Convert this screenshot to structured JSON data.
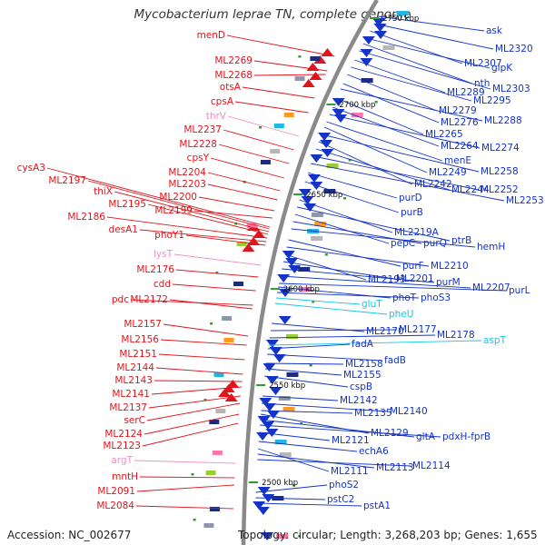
{
  "title": "Mycobacterium leprae TN, complete genome",
  "footer": {
    "accession": "Accession: NC_002677",
    "summary": "Topology: circular; Length: 3,268,203 bp; Genes: 1,655"
  },
  "colors": {
    "forward_strand": "#e0151b",
    "reverse_strand": "#1433c8",
    "rna_left": "#ee90c0",
    "rna_right": "#16c6e6",
    "backbone": "#8a8a8a"
  },
  "scale_ticks": [
    {
      "label": "2750 kbp"
    },
    {
      "label": "2700 kbp"
    },
    {
      "label": "2650 kbp"
    },
    {
      "label": "2600 kbp"
    },
    {
      "label": "2550 kbp"
    },
    {
      "label": "2500 kbp"
    }
  ],
  "left_labels": [
    {
      "text": "menD",
      "type": "forward"
    },
    {
      "text": "ML2269",
      "type": "forward"
    },
    {
      "text": "ML2268",
      "type": "forward"
    },
    {
      "text": "otsA",
      "type": "forward"
    },
    {
      "text": "cpsA",
      "type": "forward"
    },
    {
      "text": "thrV",
      "type": "rna"
    },
    {
      "text": "ML2237",
      "type": "forward"
    },
    {
      "text": "ML2228",
      "type": "forward"
    },
    {
      "text": "cpsY",
      "type": "forward"
    },
    {
      "text": "cysA3",
      "type": "forward"
    },
    {
      "text": "ML2204",
      "type": "forward"
    },
    {
      "text": "ML2197",
      "type": "forward"
    },
    {
      "text": "ML2203",
      "type": "forward"
    },
    {
      "text": "thiX",
      "type": "forward"
    },
    {
      "text": "ML2200",
      "type": "forward"
    },
    {
      "text": "ML2195",
      "type": "forward"
    },
    {
      "text": "ML2199",
      "type": "forward"
    },
    {
      "text": "ML2186",
      "type": "forward"
    },
    {
      "text": "desA1",
      "type": "forward"
    },
    {
      "text": "phoY1",
      "type": "forward"
    },
    {
      "text": "lysT",
      "type": "rna"
    },
    {
      "text": "ML2176",
      "type": "forward"
    },
    {
      "text": "cdd",
      "type": "forward"
    },
    {
      "text": "pdc",
      "type": "forward"
    },
    {
      "text": "ML2172",
      "type": "forward"
    },
    {
      "text": "ML2157",
      "type": "forward"
    },
    {
      "text": "ML2156",
      "type": "forward"
    },
    {
      "text": "ML2151",
      "type": "forward"
    },
    {
      "text": "ML2144",
      "type": "forward"
    },
    {
      "text": "ML2143",
      "type": "forward"
    },
    {
      "text": "ML2141",
      "type": "forward"
    },
    {
      "text": "ML2137",
      "type": "forward"
    },
    {
      "text": "serC",
      "type": "forward"
    },
    {
      "text": "ML2124",
      "type": "forward"
    },
    {
      "text": "ML2123",
      "type": "forward"
    },
    {
      "text": "argT",
      "type": "rna"
    },
    {
      "text": "mntH",
      "type": "forward"
    },
    {
      "text": "ML2091",
      "type": "forward"
    },
    {
      "text": "ML2084",
      "type": "forward"
    }
  ],
  "right_labels": [
    {
      "text": "ask",
      "type": "reverse"
    },
    {
      "text": "ML2320",
      "type": "reverse"
    },
    {
      "text": "ML2307",
      "type": "reverse"
    },
    {
      "text": "glpK",
      "type": "reverse"
    },
    {
      "text": "nth",
      "type": "reverse"
    },
    {
      "text": "ML2303",
      "type": "reverse"
    },
    {
      "text": "ML2289",
      "type": "reverse"
    },
    {
      "text": "ML2295",
      "type": "reverse"
    },
    {
      "text": "ML2279",
      "type": "reverse"
    },
    {
      "text": "ML2276",
      "type": "reverse"
    },
    {
      "text": "ML2288",
      "type": "reverse"
    },
    {
      "text": "ML2265",
      "type": "reverse"
    },
    {
      "text": "ML2264",
      "type": "reverse"
    },
    {
      "text": "ML2274",
      "type": "reverse"
    },
    {
      "text": "menE",
      "type": "reverse"
    },
    {
      "text": "ML2249",
      "type": "reverse"
    },
    {
      "text": "ML2258",
      "type": "reverse"
    },
    {
      "text": "ML2242",
      "type": "reverse"
    },
    {
      "text": "ML2244",
      "type": "reverse"
    },
    {
      "text": "ML2252",
      "type": "reverse"
    },
    {
      "text": "ML2253",
      "type": "reverse"
    },
    {
      "text": "purD",
      "type": "reverse"
    },
    {
      "text": "purB",
      "type": "reverse"
    },
    {
      "text": "ML2219A",
      "type": "reverse"
    },
    {
      "text": "ptrB",
      "type": "reverse"
    },
    {
      "text": "pepC",
      "type": "reverse"
    },
    {
      "text": "purQ",
      "type": "reverse"
    },
    {
      "text": "hemH",
      "type": "reverse"
    },
    {
      "text": "purF",
      "type": "reverse"
    },
    {
      "text": "ML2210",
      "type": "reverse"
    },
    {
      "text": "ML2193",
      "type": "reverse"
    },
    {
      "text": "ML2201",
      "type": "reverse"
    },
    {
      "text": "purM",
      "type": "reverse"
    },
    {
      "text": "ML2207",
      "type": "reverse"
    },
    {
      "text": "purL",
      "type": "reverse"
    },
    {
      "text": "phoT",
      "type": "reverse"
    },
    {
      "text": "phoS3",
      "type": "reverse"
    },
    {
      "text": "gluT",
      "type": "rna"
    },
    {
      "text": "pheU",
      "type": "rna"
    },
    {
      "text": "ML2170",
      "type": "reverse"
    },
    {
      "text": "ML2177",
      "type": "reverse"
    },
    {
      "text": "ML2178",
      "type": "reverse"
    },
    {
      "text": "aspT",
      "type": "rna"
    },
    {
      "text": "fadA",
      "type": "reverse"
    },
    {
      "text": "fadB",
      "type": "reverse"
    },
    {
      "text": "ML2158",
      "type": "reverse"
    },
    {
      "text": "ML2155",
      "type": "reverse"
    },
    {
      "text": "cspB",
      "type": "reverse"
    },
    {
      "text": "ML2142",
      "type": "reverse"
    },
    {
      "text": "ML2140",
      "type": "reverse"
    },
    {
      "text": "ML2135",
      "type": "reverse"
    },
    {
      "text": "ML2129",
      "type": "reverse"
    },
    {
      "text": "gltA",
      "type": "reverse"
    },
    {
      "text": "pdxH-fprB",
      "type": "reverse"
    },
    {
      "text": "ML2121",
      "type": "reverse"
    },
    {
      "text": "echA6",
      "type": "reverse"
    },
    {
      "text": "ML2111",
      "type": "reverse"
    },
    {
      "text": "ML2113",
      "type": "reverse"
    },
    {
      "text": "ML2114",
      "type": "reverse"
    },
    {
      "text": "phoS2",
      "type": "reverse"
    },
    {
      "text": "pstC2",
      "type": "reverse"
    },
    {
      "text": "pstA1",
      "type": "reverse"
    }
  ]
}
